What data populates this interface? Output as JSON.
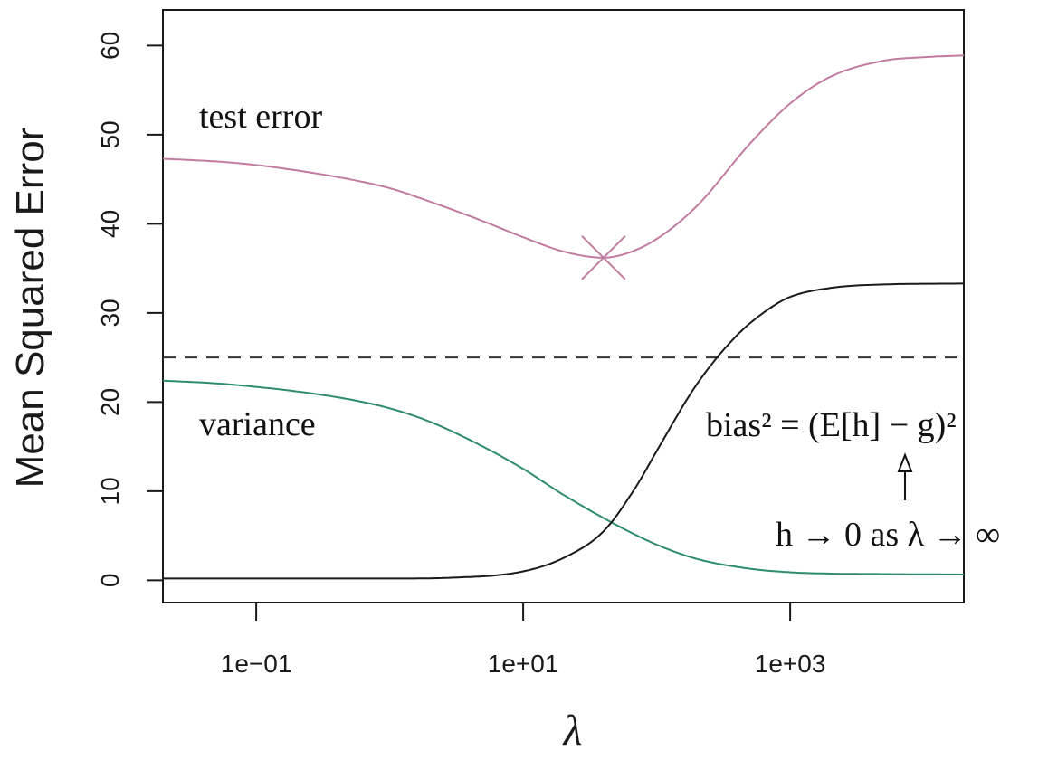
{
  "chart_data": {
    "type": "line",
    "xlabel": "λ",
    "ylabel": "Mean Squared Error",
    "x_scale": "log10",
    "xlim": [
      0.02,
      20000
    ],
    "ylim": [
      -2.5,
      64
    ],
    "xticks": [
      {
        "value": 0.1,
        "label": "1e−01"
      },
      {
        "value": 10,
        "label": "1e+01"
      },
      {
        "value": 1000,
        "label": "1e+03"
      }
    ],
    "yticks": [
      0,
      10,
      20,
      30,
      40,
      50,
      60
    ],
    "series": [
      {
        "name": "test error",
        "color": "#c27ba0",
        "points": [
          [
            0.02,
            47.3
          ],
          [
            0.05,
            47.0
          ],
          [
            0.1,
            46.6
          ],
          [
            0.2,
            46.0
          ],
          [
            0.5,
            45.0
          ],
          [
            1,
            44.0
          ],
          [
            2,
            42.5
          ],
          [
            5,
            40.3
          ],
          [
            10,
            38.5
          ],
          [
            20,
            36.9
          ],
          [
            40,
            36.2
          ],
          [
            60,
            36.7
          ],
          [
            100,
            38.3
          ],
          [
            200,
            42.0
          ],
          [
            500,
            49.0
          ],
          [
            1000,
            53.5
          ],
          [
            2000,
            56.5
          ],
          [
            5000,
            58.3
          ],
          [
            10000,
            58.7
          ],
          [
            20000,
            58.9
          ]
        ]
      },
      {
        "name": "variance",
        "color": "#2e8b6e",
        "points": [
          [
            0.02,
            22.4
          ],
          [
            0.05,
            22.1
          ],
          [
            0.1,
            21.7
          ],
          [
            0.2,
            21.2
          ],
          [
            0.5,
            20.3
          ],
          [
            1,
            19.3
          ],
          [
            2,
            17.8
          ],
          [
            5,
            15.0
          ],
          [
            10,
            12.5
          ],
          [
            20,
            9.6
          ],
          [
            50,
            6.2
          ],
          [
            100,
            4.0
          ],
          [
            200,
            2.4
          ],
          [
            500,
            1.3
          ],
          [
            1000,
            0.9
          ],
          [
            2000,
            0.75
          ],
          [
            5000,
            0.7
          ],
          [
            20000,
            0.65
          ]
        ]
      },
      {
        "name": "bias²",
        "color": "#1a1a1a",
        "points": [
          [
            0.02,
            0.2
          ],
          [
            1,
            0.2
          ],
          [
            3,
            0.3
          ],
          [
            10,
            1.0
          ],
          [
            20,
            2.5
          ],
          [
            40,
            5.5
          ],
          [
            70,
            10.5
          ],
          [
            100,
            14.5
          ],
          [
            200,
            22.0
          ],
          [
            400,
            27.5
          ],
          [
            700,
            30.5
          ],
          [
            1000,
            31.8
          ],
          [
            2000,
            32.8
          ],
          [
            5000,
            33.2
          ],
          [
            20000,
            33.3
          ]
        ]
      }
    ],
    "reference_line": {
      "y": 25,
      "style": "dashed",
      "color": "#333333"
    },
    "minimum_marker": {
      "x": 40,
      "y": 36.2,
      "shape": "cross",
      "color": "#c27ba0"
    },
    "annotations": {
      "test_error": "test error",
      "variance": "variance",
      "bias_formula": "bias² = (E[h] − g)²",
      "limit_note": "h → 0 as λ → ∞"
    }
  }
}
